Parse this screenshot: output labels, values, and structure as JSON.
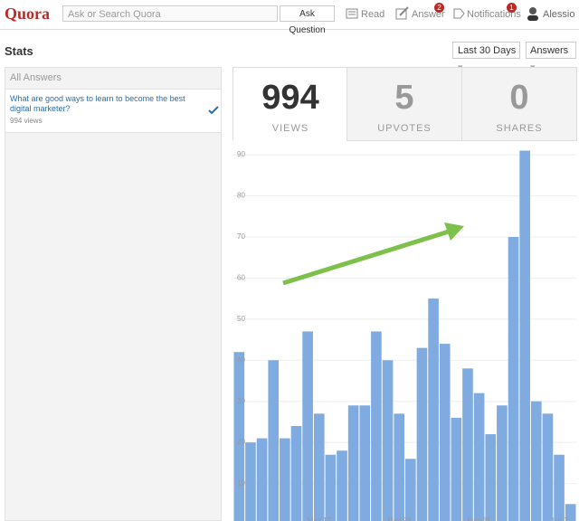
{
  "header": {
    "logo": "Quora",
    "search_placeholder": "Ask or Search Quora",
    "ask_button": "Ask Question",
    "nav": [
      {
        "label": "Read"
      },
      {
        "label": "Answer",
        "badge": "2"
      },
      {
        "label": "Notifications",
        "badge": "1"
      }
    ],
    "user": "Alessio"
  },
  "stats": {
    "title": "Stats",
    "filters": [
      "Last 30 Days",
      "Answers"
    ]
  },
  "answers": {
    "header": "All Answers",
    "items": [
      {
        "question": "What are good ways to learn to become the best digital marketer?",
        "views": "994 views"
      }
    ]
  },
  "tabs": [
    {
      "number": 994,
      "label": "VIEWS"
    },
    {
      "number": 5,
      "label": "UPVOTES"
    },
    {
      "number": 0,
      "label": "SHARES"
    }
  ],
  "chart_data": {
    "type": "bar",
    "color": "#7fabe0",
    "categories": [
      null,
      null,
      null,
      null,
      null,
      null,
      null,
      "May 17",
      null,
      null,
      null,
      null,
      null,
      null,
      "May 24",
      null,
      null,
      null,
      null,
      null,
      null,
      "May 31",
      null,
      null,
      null,
      null,
      null,
      null,
      "Jun 7",
      null
    ],
    "values": [
      42,
      20,
      21,
      40,
      21,
      24,
      47,
      27,
      17,
      18,
      29,
      29,
      47,
      40,
      27,
      16,
      43,
      55,
      44,
      26,
      38,
      32,
      22,
      29,
      70,
      91,
      30,
      27,
      17,
      5
    ],
    "ylim": [
      0,
      92
    ],
    "yticks": [
      10,
      20,
      30,
      40,
      50,
      60,
      70,
      80,
      90
    ],
    "grid": true
  }
}
